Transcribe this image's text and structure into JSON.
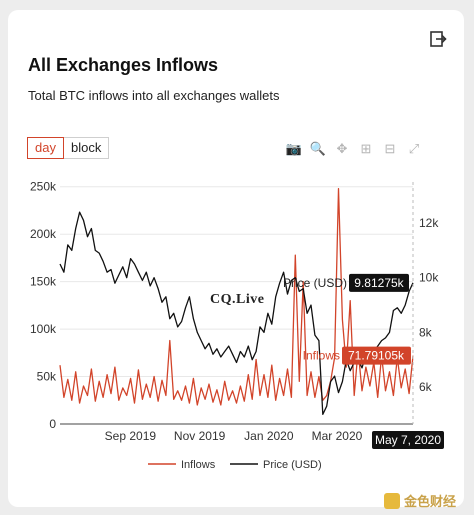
{
  "header": {
    "title": "All Exchanges Inflows",
    "subtitle": "Total BTC inflows into all exchanges wallets",
    "export_icon": "export-icon"
  },
  "tabs": [
    {
      "label": "day",
      "active": true
    },
    {
      "label": "block",
      "active": false
    }
  ],
  "toolbar": [
    {
      "icon": "camera-icon",
      "glyph": "📷"
    },
    {
      "icon": "zoom-icon",
      "glyph": "🔍"
    },
    {
      "icon": "pan-icon",
      "glyph": "✥"
    },
    {
      "icon": "zoom-in-icon",
      "glyph": "⊞"
    },
    {
      "icon": "zoom-out-icon",
      "glyph": "⊟"
    },
    {
      "icon": "autoscale-icon",
      "glyph": "⤢"
    }
  ],
  "watermark": "CQ.Live",
  "brand": "金色财经",
  "chart_data": {
    "type": "line",
    "title": "",
    "y_ticks": [
      "0",
      "50k",
      "100k",
      "150k",
      "200k",
      "250k"
    ],
    "y_range": [
      0,
      255000
    ],
    "y2_ticks": [
      "6k",
      "8k",
      "10k",
      "12k"
    ],
    "y2_range": [
      4650,
      13500
    ],
    "x_ticks": [
      "Sep 2019",
      "Nov 2019",
      "Jan 2020",
      "Mar 2020",
      "May 2020"
    ],
    "x_range": [
      "2019-07-01",
      "2020-05-07"
    ],
    "series": [
      {
        "name": "Inflows",
        "color": "#d2442a",
        "axis": "left",
        "values": [
          62000,
          28000,
          47000,
          25000,
          55000,
          22000,
          40000,
          30000,
          58000,
          24000,
          45000,
          28000,
          52000,
          32000,
          60000,
          25000,
          38000,
          30000,
          48000,
          22000,
          57000,
          26000,
          42000,
          28000,
          50000,
          24000,
          46000,
          30000,
          88000,
          26000,
          35000,
          25000,
          40000,
          22000,
          48000,
          20000,
          38000,
          26000,
          42000,
          23000,
          36000,
          20000,
          45000,
          25000,
          35000,
          22000,
          40000,
          24000,
          52000,
          26000,
          68000,
          30000,
          52000,
          28000,
          62000,
          25000,
          48000,
          30000,
          58000,
          28000,
          178000,
          45000,
          150000,
          30000,
          55000,
          28000,
          50000,
          25000,
          30000,
          45000,
          70000,
          248000,
          110000,
          60000,
          130000,
          30000,
          78000,
          35000,
          60000,
          40000,
          65000,
          28000,
          72000,
          35000,
          55000,
          30000,
          70000,
          38000,
          58000,
          32000,
          72000
        ]
      },
      {
        "name": "Price (USD)",
        "color": "#111111",
        "axis": "right",
        "values": [
          10500,
          10200,
          11200,
          11000,
          11800,
          12400,
          12100,
          11500,
          11800,
          11000,
          10900,
          10600,
          10200,
          10300,
          9800,
          10100,
          10400,
          10000,
          10700,
          10500,
          10200,
          9900,
          10200,
          9700,
          10000,
          9600,
          9100,
          9300,
          8500,
          8700,
          8200,
          8400,
          8900,
          9300,
          8500,
          8000,
          7700,
          7400,
          7600,
          7200,
          7400,
          7100,
          7300,
          7500,
          7200,
          6900,
          7300,
          7100,
          7500,
          7000,
          7300,
          8200,
          8000,
          8700,
          8300,
          9300,
          9800,
          10200,
          9400,
          9900,
          10000,
          9500,
          9600,
          8700,
          9000,
          7900,
          7700,
          5000,
          5300,
          6200,
          6400,
          5800,
          6200,
          7000,
          6600,
          6900,
          7000,
          6700,
          7200,
          7000,
          7300,
          7500,
          7700,
          7800,
          8000,
          8800,
          8900,
          8700,
          9000,
          9500,
          9812
        ]
      }
    ],
    "hover": {
      "date": "May 7, 2020",
      "price_label": "Price (USD)",
      "price_value": "9.81275k",
      "inflow_label": "Inflows",
      "inflow_value": "71.79105k"
    },
    "legend_position": "bottom",
    "grid": true
  }
}
